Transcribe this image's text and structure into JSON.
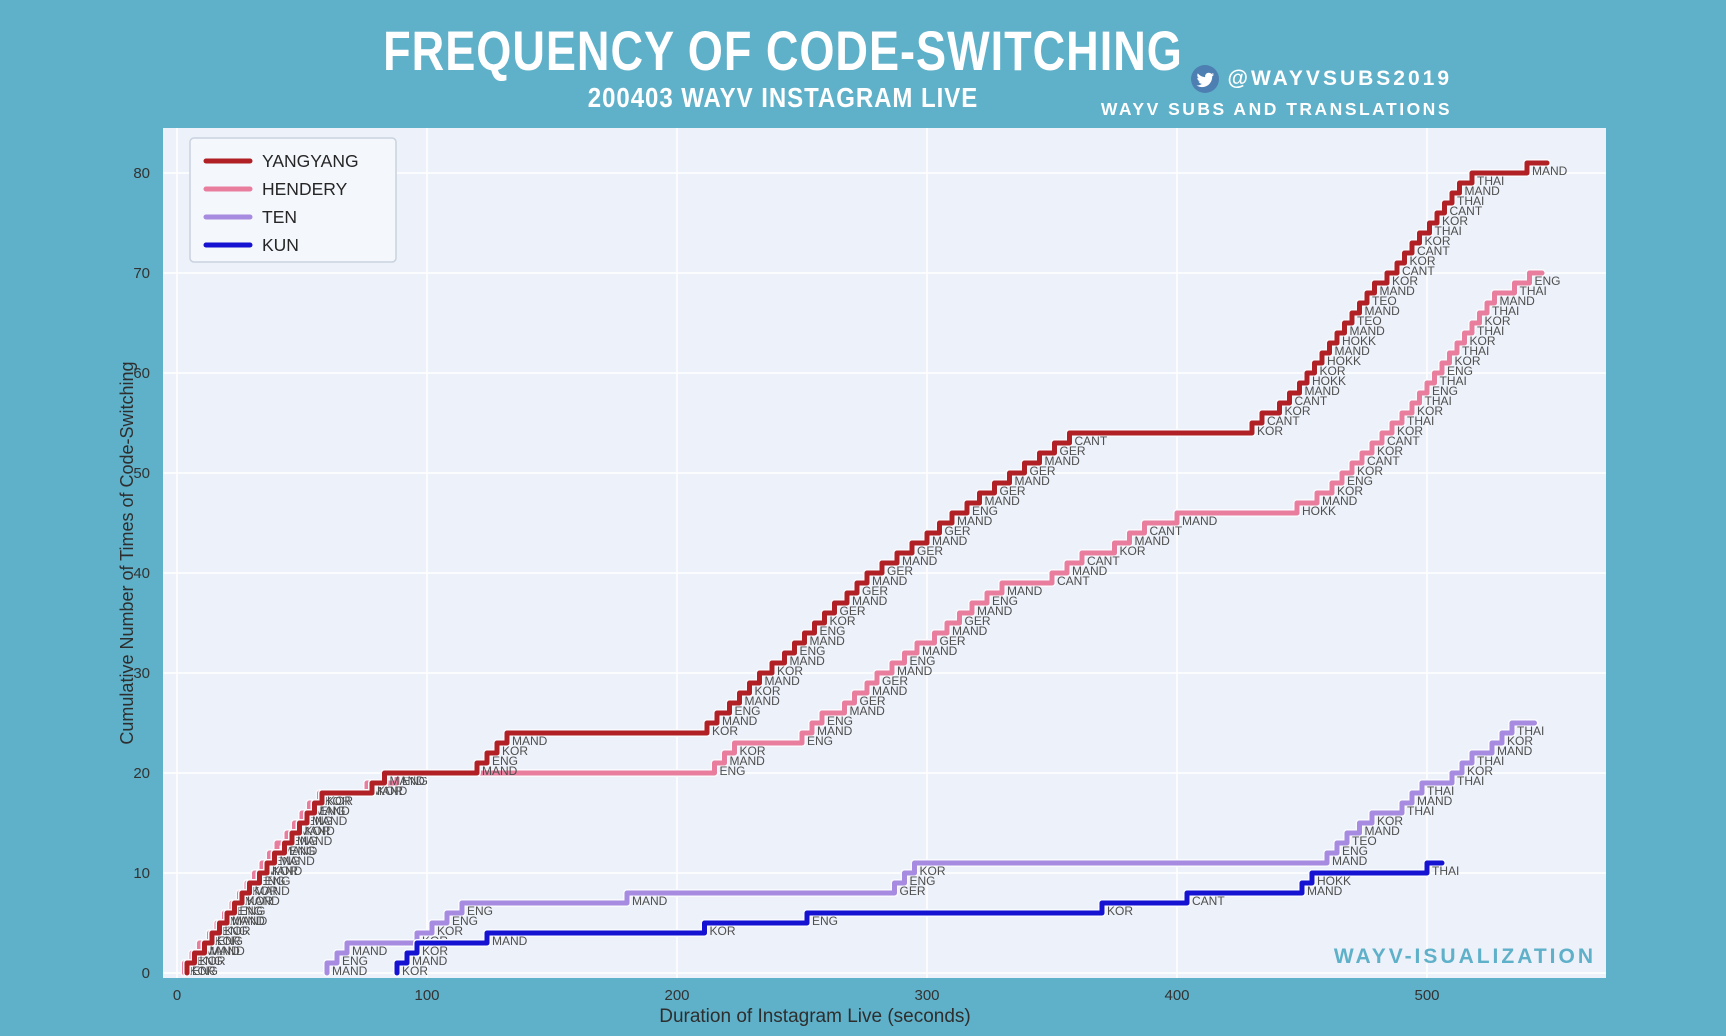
{
  "header": {
    "title": "FREQUENCY OF CODE-SWITCHING",
    "subtitle": "200403 WAYV INSTAGRAM LIVE",
    "twitter_handle": "@WAYVSUBS2019",
    "twitter_name": "WAYV SUBS AND TRANSLATIONS"
  },
  "watermark": "WAYV-ISUALIZATION",
  "colors": {
    "page_background": "#5fb0c9",
    "plot_background": "#edf1f9",
    "gridline": "#ffffff",
    "tick_text": "#333333",
    "axis_title_text": "#2e2e2e",
    "step_label_text": "#4e4e4e",
    "legend_background": "#f4f7fc",
    "legend_border": "#c9d2de",
    "legend_text": "#262626",
    "watermark_text": "#5fb0c9",
    "yangyang": "#b02025",
    "hendery": "#e87d9e",
    "ten": "#a78be0",
    "kun": "#1512d2"
  },
  "chart_data": {
    "type": "line",
    "subtype": "cumulative-step",
    "title": "FREQUENCY OF CODE-SWITCHING",
    "xlabel": "Duration of Instagram Live (seconds)",
    "ylabel": "Cumulative Number of Times of Code-Switching",
    "xlim": [
      0,
      571
    ],
    "ylim": [
      0,
      84.5
    ],
    "xticks": [
      0,
      100,
      200,
      300,
      400,
      500
    ],
    "yticks": [
      0,
      10,
      20,
      30,
      40,
      50,
      60,
      70,
      80
    ],
    "grid": true,
    "legend_position": "upper left",
    "note": "Each event is [time_seconds, language]; cumulative count = event index + 1 within its series.",
    "series": [
      {
        "name": "YANGYANG",
        "color": "#b02025",
        "total": 81,
        "end_time": 548,
        "events": [
          [
            4,
            "ENG"
          ],
          [
            7,
            "KOR"
          ],
          [
            11,
            "MAND"
          ],
          [
            14,
            "ENG"
          ],
          [
            17,
            "KOR"
          ],
          [
            20,
            "MAND"
          ],
          [
            23,
            "ENG"
          ],
          [
            26,
            "KOR"
          ],
          [
            29,
            "MAND"
          ],
          [
            33,
            "ENG"
          ],
          [
            36,
            "KOR"
          ],
          [
            39,
            "MAND"
          ],
          [
            43,
            "ENG"
          ],
          [
            46,
            "MAND"
          ],
          [
            49,
            "KOR"
          ],
          [
            52,
            "MAND"
          ],
          [
            55,
            "ENG"
          ],
          [
            58,
            "KOR"
          ],
          [
            78,
            "KOR"
          ],
          [
            83,
            "MAND"
          ],
          [
            120,
            "MAND"
          ],
          [
            124,
            "ENG"
          ],
          [
            128,
            "KOR"
          ],
          [
            132,
            "MAND"
          ],
          [
            212,
            "KOR"
          ],
          [
            216,
            "MAND"
          ],
          [
            221,
            "ENG"
          ],
          [
            225,
            "MAND"
          ],
          [
            229,
            "KOR"
          ],
          [
            233,
            "MAND"
          ],
          [
            238,
            "KOR"
          ],
          [
            243,
            "MAND"
          ],
          [
            247,
            "ENG"
          ],
          [
            251,
            "MAND"
          ],
          [
            255,
            "ENG"
          ],
          [
            259,
            "KOR"
          ],
          [
            263,
            "GER"
          ],
          [
            268,
            "MAND"
          ],
          [
            272,
            "GER"
          ],
          [
            276,
            "MAND"
          ],
          [
            282,
            "GER"
          ],
          [
            288,
            "MAND"
          ],
          [
            294,
            "GER"
          ],
          [
            300,
            "MAND"
          ],
          [
            305,
            "GER"
          ],
          [
            310,
            "MAND"
          ],
          [
            316,
            "ENG"
          ],
          [
            321,
            "MAND"
          ],
          [
            327,
            "GER"
          ],
          [
            333,
            "MAND"
          ],
          [
            339,
            "GER"
          ],
          [
            345,
            "MAND"
          ],
          [
            351,
            "GER"
          ],
          [
            357,
            "CANT"
          ],
          [
            430,
            "KOR"
          ],
          [
            434,
            "CANT"
          ],
          [
            441,
            "KOR"
          ],
          [
            445,
            "CANT"
          ],
          [
            449,
            "MAND"
          ],
          [
            452,
            "HOKK"
          ],
          [
            455,
            "KOR"
          ],
          [
            458,
            "HOKK"
          ],
          [
            461,
            "MAND"
          ],
          [
            464,
            "HOKK"
          ],
          [
            467,
            "MAND"
          ],
          [
            470,
            "TEO"
          ],
          [
            473,
            "MAND"
          ],
          [
            476,
            "TEO"
          ],
          [
            479,
            "MAND"
          ],
          [
            484,
            "KOR"
          ],
          [
            488,
            "CANT"
          ],
          [
            491,
            "KOR"
          ],
          [
            494,
            "CANT"
          ],
          [
            497,
            "KOR"
          ],
          [
            501,
            "THAI"
          ],
          [
            504,
            "KOR"
          ],
          [
            507,
            "CANT"
          ],
          [
            510,
            "THAI"
          ],
          [
            513,
            "MAND"
          ],
          [
            518,
            "THAI"
          ],
          [
            540,
            "MAND"
          ]
        ]
      },
      {
        "name": "HENDERY",
        "color": "#e87d9e",
        "total": 70,
        "end_time": 546,
        "events": [
          [
            3,
            "KOR"
          ],
          [
            6,
            "ENG"
          ],
          [
            9,
            "MAND"
          ],
          [
            13,
            "KOR"
          ],
          [
            16,
            "ENG"
          ],
          [
            19,
            "MAND"
          ],
          [
            22,
            "ENG"
          ],
          [
            25,
            "MAND"
          ],
          [
            28,
            "KOR"
          ],
          [
            31,
            "ENG"
          ],
          [
            34,
            "MAND"
          ],
          [
            37,
            "ENG"
          ],
          [
            40,
            "MAND"
          ],
          [
            44,
            "ENG"
          ],
          [
            47,
            "MAND"
          ],
          [
            50,
            "ENG"
          ],
          [
            53,
            "MAND"
          ],
          [
            57,
            "KOR"
          ],
          [
            76,
            "MAND"
          ],
          [
            88,
            "ENG"
          ],
          [
            215,
            "ENG"
          ],
          [
            219,
            "MAND"
          ],
          [
            223,
            "KOR"
          ],
          [
            250,
            "ENG"
          ],
          [
            254,
            "MAND"
          ],
          [
            258,
            "ENG"
          ],
          [
            267,
            "MAND"
          ],
          [
            271,
            "GER"
          ],
          [
            276,
            "MAND"
          ],
          [
            280,
            "GER"
          ],
          [
            286,
            "MAND"
          ],
          [
            291,
            "ENG"
          ],
          [
            296,
            "MAND"
          ],
          [
            303,
            "GER"
          ],
          [
            308,
            "MAND"
          ],
          [
            313,
            "GER"
          ],
          [
            318,
            "MAND"
          ],
          [
            324,
            "ENG"
          ],
          [
            330,
            "MAND"
          ],
          [
            350,
            "CANT"
          ],
          [
            356,
            "MAND"
          ],
          [
            362,
            "CANT"
          ],
          [
            375,
            "KOR"
          ],
          [
            381,
            "MAND"
          ],
          [
            387,
            "CANT"
          ],
          [
            400,
            "MAND"
          ],
          [
            448,
            "HOKK"
          ],
          [
            456,
            "MAND"
          ],
          [
            462,
            "KOR"
          ],
          [
            466,
            "ENG"
          ],
          [
            470,
            "KOR"
          ],
          [
            474,
            "CANT"
          ],
          [
            478,
            "KOR"
          ],
          [
            482,
            "CANT"
          ],
          [
            486,
            "KOR"
          ],
          [
            490,
            "THAI"
          ],
          [
            494,
            "KOR"
          ],
          [
            497,
            "THAI"
          ],
          [
            500,
            "ENG"
          ],
          [
            503,
            "THAI"
          ],
          [
            506,
            "ENG"
          ],
          [
            509,
            "KOR"
          ],
          [
            512,
            "THAI"
          ],
          [
            515,
            "KOR"
          ],
          [
            518,
            "THAI"
          ],
          [
            521,
            "KOR"
          ],
          [
            524,
            "THAI"
          ],
          [
            527,
            "MAND"
          ],
          [
            535,
            "THAI"
          ],
          [
            541,
            "ENG"
          ]
        ]
      },
      {
        "name": "TEN",
        "color": "#a78be0",
        "total": 25,
        "end_time": 543,
        "events": [
          [
            60,
            "MAND"
          ],
          [
            64,
            "ENG"
          ],
          [
            68,
            "MAND"
          ],
          [
            96,
            "KOR"
          ],
          [
            102,
            "KOR"
          ],
          [
            108,
            "ENG"
          ],
          [
            114,
            "ENG"
          ],
          [
            180,
            "MAND"
          ],
          [
            287,
            "GER"
          ],
          [
            291,
            "ENG"
          ],
          [
            295,
            "KOR"
          ],
          [
            460,
            "MAND"
          ],
          [
            464,
            "ENG"
          ],
          [
            468,
            "TEO"
          ],
          [
            473,
            "MAND"
          ],
          [
            478,
            "KOR"
          ],
          [
            490,
            "THAI"
          ],
          [
            494,
            "MAND"
          ],
          [
            498,
            "THAI"
          ],
          [
            510,
            "THAI"
          ],
          [
            514,
            "KOR"
          ],
          [
            518,
            "THAI"
          ],
          [
            526,
            "MAND"
          ],
          [
            530,
            "KOR"
          ],
          [
            534,
            "THAI"
          ]
        ]
      },
      {
        "name": "KUN",
        "color": "#1512d2",
        "total": 11,
        "end_time": 506,
        "events": [
          [
            88,
            "KOR"
          ],
          [
            92,
            "MAND"
          ],
          [
            96,
            "KOR"
          ],
          [
            124,
            "MAND"
          ],
          [
            211,
            "KOR"
          ],
          [
            252,
            "ENG"
          ],
          [
            370,
            "KOR"
          ],
          [
            404,
            "CANT"
          ],
          [
            450,
            "MAND"
          ],
          [
            454,
            "HOKK"
          ],
          [
            500,
            "THAI"
          ]
        ]
      }
    ]
  }
}
